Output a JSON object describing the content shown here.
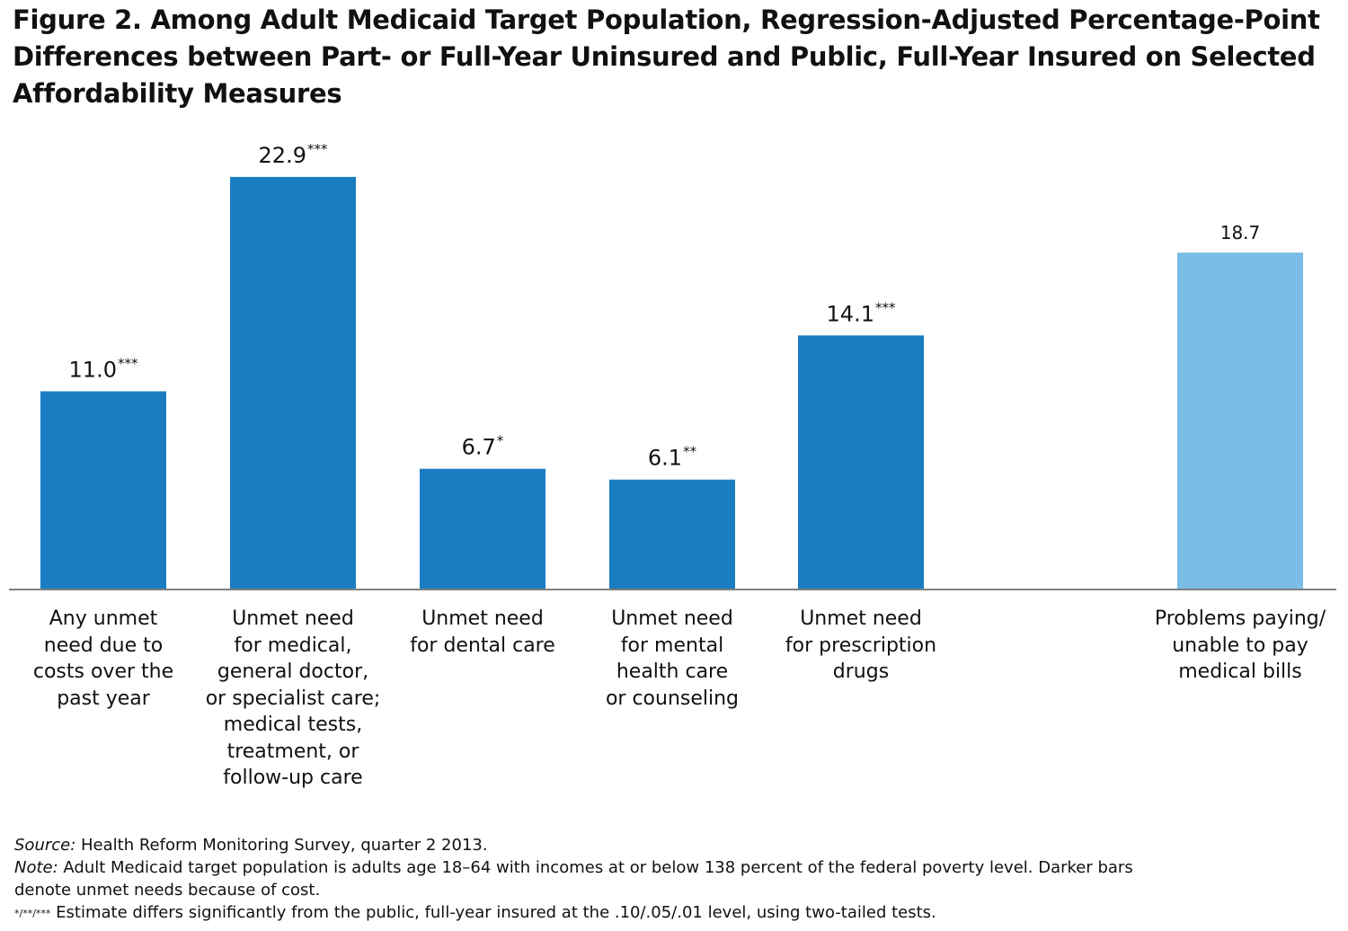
{
  "title": {
    "line1": "Figure 2. Among Adult Medicaid Target Population, Regression-Adjusted Percentage-Point",
    "line2": "Differences between Part- or Full-Year Uninsured and Public, Full-Year Insured on Selected",
    "line3": "Affordability Measures"
  },
  "colors": {
    "dark_bar": "#1a7dc1",
    "light_bar": "#7bbde6",
    "axis": "#808080"
  },
  "chart_data": {
    "type": "bar",
    "title": "Figure 2. Among Adult Medicaid Target Population, Regression-Adjusted Percentage-Point Differences between Part- or Full-Year Uninsured and Public, Full-Year Insured on Selected Affordability Measures",
    "categories": [
      [
        "Any unmet",
        "need due to",
        "costs over the",
        "past year"
      ],
      [
        "Unmet need",
        "for medical,",
        "general doctor,",
        "or specialist care;",
        "medical tests,",
        "treatment, or",
        "follow-up care"
      ],
      [
        "Unmet need",
        "for dental care"
      ],
      [
        "Unmet need",
        "for mental",
        "health care",
        "or counseling"
      ],
      [
        "Unmet need",
        "for prescription",
        "drugs"
      ],
      [
        "Problems paying/",
        "unable to pay",
        "medical bills"
      ]
    ],
    "values": [
      11.0,
      22.9,
      6.7,
      6.1,
      14.1,
      18.7
    ],
    "value_labels": [
      "11.0",
      "22.9",
      "6.7",
      "6.1",
      "14.1",
      "18.7"
    ],
    "significance": [
      "***",
      "***",
      "*",
      "**",
      "***",
      ""
    ],
    "bar_shade": [
      "dark",
      "dark",
      "dark",
      "dark",
      "dark",
      "light"
    ],
    "ylim": [
      0,
      25
    ],
    "xlabel": "",
    "ylabel": "",
    "grid": false,
    "legend": "none"
  },
  "notes": {
    "source_label": "Source:",
    "source_text": " Health Reform Monitoring Survey, quarter 2 2013.",
    "note_label": "Note:",
    "note_text_1": " Adult Medicaid target population is adults age 18–64 with incomes at or below 138 percent of the federal poverty level. Darker bars",
    "note_text_2": "denote unmet needs because of cost.",
    "sig_marks": "*/**/***",
    "sig_text": " Estimate differs significantly from the public, full-year insured at the .10/.05/.01 level, using two-tailed tests."
  }
}
